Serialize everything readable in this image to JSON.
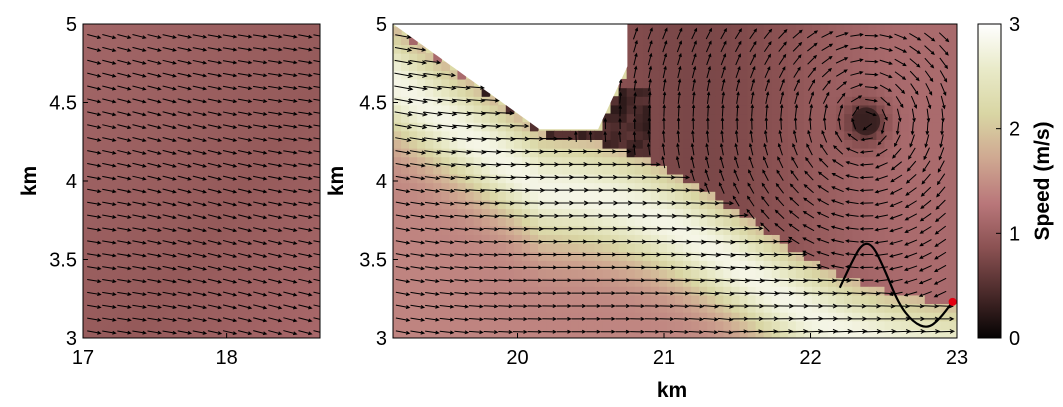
{
  "chart_data": [
    {
      "type": "heatmap",
      "panel": "left",
      "xlabel": "",
      "ylabel": "km",
      "xlim": [
        17,
        18.65
      ],
      "ylim": [
        3,
        5
      ],
      "xticks": [
        "17",
        "18"
      ],
      "yticks": [
        "3",
        "3.5",
        "4",
        "4.5",
        "5"
      ],
      "field_description": "quiver arrows, near-uniform flow towards the east with slight southward deflection",
      "arrow_direction_deg": -12,
      "speed_range_mps": [
        0.8,
        1.3
      ]
    },
    {
      "type": "heatmap",
      "panel": "right",
      "xlabel": "km",
      "ylabel": "km",
      "xlim": [
        19.15,
        23
      ],
      "ylim": [
        3,
        5
      ],
      "xticks": [
        "20",
        "21",
        "22",
        "23"
      ],
      "yticks": [
        "3",
        "3.5",
        "4",
        "4.5",
        "5"
      ],
      "eddy_center_km": [
        22.38,
        4.38
      ],
      "jet_speed_mps": 2.8,
      "track": [
        [
          22.2,
          3.32
        ],
        [
          22.28,
          3.48
        ],
        [
          22.35,
          3.6
        ],
        [
          22.42,
          3.6
        ],
        [
          22.5,
          3.45
        ],
        [
          22.6,
          3.22
        ],
        [
          22.7,
          3.1
        ],
        [
          22.8,
          3.06
        ],
        [
          22.88,
          3.12
        ],
        [
          22.97,
          3.23
        ]
      ],
      "track_end_marker": [
        22.97,
        3.23
      ]
    }
  ],
  "colorbar": {
    "label": "Speed (m/s)",
    "ticks": [
      "0",
      "1",
      "2",
      "3"
    ],
    "range": [
      0,
      3
    ],
    "colormap": [
      "#050303",
      "#4a2a2a",
      "#8a5152",
      "#b9777a",
      "#cfa891",
      "#d9d6a4",
      "#e9eac9",
      "#ffffff"
    ]
  },
  "colors": {
    "land": "#ffffff",
    "arrow": "#000000",
    "track": "#000000",
    "marker": "#e3000f"
  }
}
